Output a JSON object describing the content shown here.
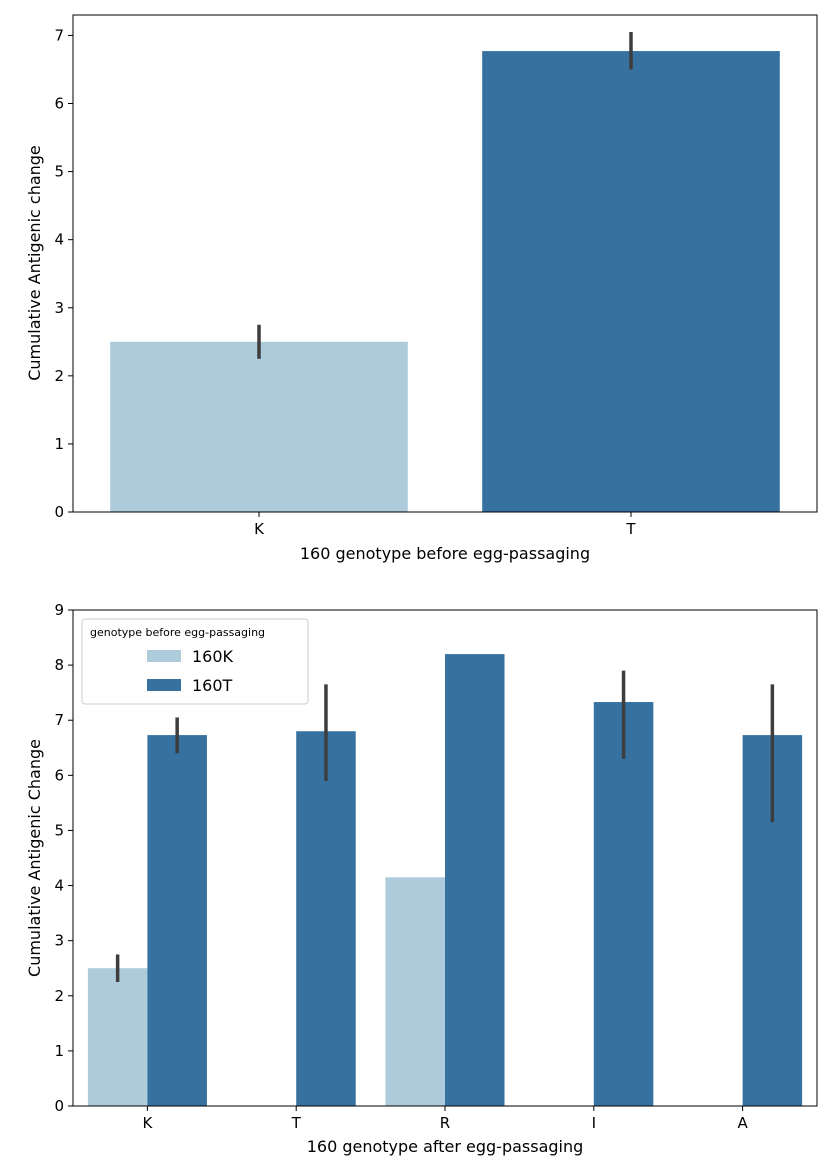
{
  "colors": {
    "light": "#adcbda",
    "dark": "#3671a0",
    "err": "#3d3d3d",
    "axis": "#000000"
  },
  "chart_data": [
    {
      "type": "bar",
      "categories": [
        "K",
        "T"
      ],
      "series": [
        {
          "color": "light_and_dark",
          "values": [
            2.5,
            6.77
          ]
        }
      ],
      "bar_colors": [
        "light",
        "dark"
      ],
      "errors": [
        [
          2.25,
          2.75
        ],
        [
          6.5,
          7.05
        ]
      ],
      "xlabel": "160 genotype before egg-passaging",
      "ylabel": "Cumulative Antigenic change",
      "ylim": [
        0,
        7.3
      ],
      "yticks": [
        0,
        1,
        2,
        3,
        4,
        5,
        6,
        7
      ],
      "grid": false
    },
    {
      "type": "bar",
      "categories": [
        "K",
        "T",
        "R",
        "I",
        "A"
      ],
      "legend": {
        "title": "genotype before egg-passaging",
        "placement": "top-left"
      },
      "series": [
        {
          "name": "160K",
          "color": "light",
          "values": [
            2.5,
            null,
            4.15,
            null,
            null
          ],
          "errors": [
            [
              2.25,
              2.75
            ],
            null,
            null,
            null,
            null
          ]
        },
        {
          "name": "160T",
          "color": "dark",
          "values": [
            6.73,
            6.8,
            8.2,
            7.33,
            6.73
          ],
          "errors": [
            [
              6.4,
              7.05
            ],
            [
              5.9,
              7.65
            ],
            null,
            [
              6.3,
              7.9
            ],
            [
              5.15,
              7.65
            ]
          ]
        }
      ],
      "xlabel": "160 genotype after egg-passaging",
      "ylabel": "Cumulative Antigenic Change",
      "ylim": [
        0,
        9
      ],
      "yticks": [
        0,
        1,
        2,
        3,
        4,
        5,
        6,
        7,
        8,
        9
      ],
      "grid": false
    }
  ]
}
